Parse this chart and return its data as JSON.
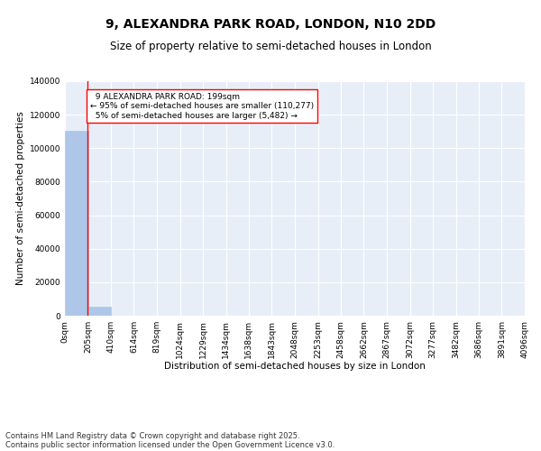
{
  "title_line1": "9, ALEXANDRA PARK ROAD, LONDON, N10 2DD",
  "title_line2": "Size of property relative to semi-detached houses in London",
  "xlabel": "Distribution of semi-detached houses by size in London",
  "ylabel": "Number of semi-detached properties",
  "property_size": 199,
  "property_label": "9 ALEXANDRA PARK ROAD: 199sqm",
  "pct_smaller": 95,
  "count_smaller": 110277,
  "pct_larger": 5,
  "count_larger": 5482,
  "annotation_type": "semi-detached",
  "bar_color": "#aec6e8",
  "bar_edge_color": "#aec6e8",
  "vline_color": "red",
  "background_color": "#e8eef8",
  "bin_edges": [
    0,
    205,
    410,
    614,
    819,
    1024,
    1229,
    1434,
    1638,
    1843,
    2048,
    2253,
    2458,
    2662,
    2867,
    3072,
    3277,
    3482,
    3686,
    3891,
    4096
  ],
  "bin_labels": [
    "0sqm",
    "205sqm",
    "410sqm",
    "614sqm",
    "819sqm",
    "1024sqm",
    "1229sqm",
    "1434sqm",
    "1638sqm",
    "1843sqm",
    "2048sqm",
    "2253sqm",
    "2458sqm",
    "2662sqm",
    "2867sqm",
    "3072sqm",
    "3277sqm",
    "3482sqm",
    "3686sqm",
    "3891sqm",
    "4096sqm"
  ],
  "bar_heights": [
    110277,
    5482,
    0,
    0,
    0,
    0,
    0,
    0,
    0,
    0,
    0,
    0,
    0,
    0,
    0,
    0,
    0,
    0,
    0,
    0
  ],
  "ylim": [
    0,
    140000
  ],
  "yticks": [
    0,
    20000,
    40000,
    60000,
    80000,
    100000,
    120000,
    140000
  ],
  "footer_line1": "Contains HM Land Registry data © Crown copyright and database right 2025.",
  "footer_line2": "Contains public sector information licensed under the Open Government Licence v3.0.",
  "title_fontsize": 10,
  "subtitle_fontsize": 8.5,
  "axis_fontsize": 7.5,
  "tick_fontsize": 6.5,
  "footer_fontsize": 6.0,
  "annot_fontsize": 6.5
}
